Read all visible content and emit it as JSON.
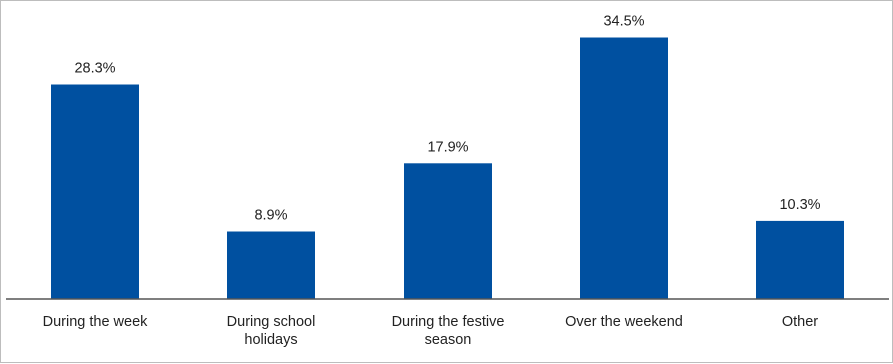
{
  "chart_data": {
    "type": "bar",
    "categories": [
      [
        "During the week"
      ],
      [
        "During school",
        "holidays"
      ],
      [
        "During the festive",
        "season"
      ],
      [
        "Over the weekend"
      ],
      [
        "Other"
      ]
    ],
    "values": [
      28.3,
      8.9,
      17.9,
      34.5,
      10.3
    ],
    "value_labels": [
      "28.3%",
      "8.9%",
      "17.9%",
      "34.5%",
      "10.3%"
    ],
    "title": "",
    "xlabel": "",
    "ylabel": "",
    "ylim": [
      0,
      38
    ],
    "grid": false,
    "legend": "none",
    "bar_color": "#0050a0",
    "axis_color": "#555555"
  }
}
